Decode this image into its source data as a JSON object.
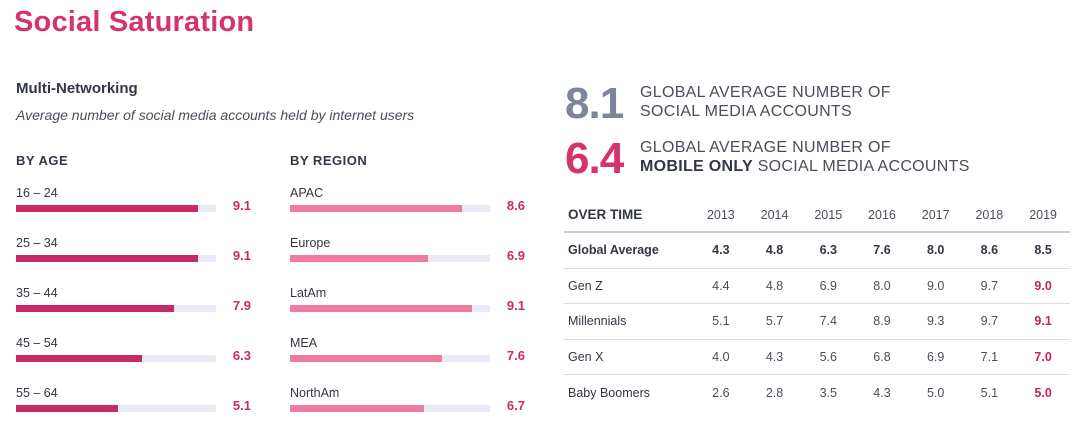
{
  "title": "Social Saturation",
  "subtitle": "Multi-Networking",
  "description": "Average number of social media accounts held by internet users",
  "colors": {
    "age": "#c72a64",
    "region": "#f07aa0",
    "track": "#e8eaf5",
    "accent": "#d6336c",
    "slate": "#7e849c"
  },
  "chart_data": [
    {
      "type": "bar",
      "title": "BY AGE",
      "categories": [
        "16 – 24",
        "25 – 34",
        "35 – 44",
        "45 – 54",
        "55 – 64"
      ],
      "values": [
        9.1,
        9.1,
        7.9,
        6.3,
        5.1
      ],
      "value_labels": [
        "9.1",
        "9.1",
        "7.9",
        "6.3",
        "5.1"
      ],
      "xlim": [
        0,
        10
      ]
    },
    {
      "type": "bar",
      "title": "BY REGION",
      "categories": [
        "APAC",
        "Europe",
        "LatAm",
        "MEA",
        "NorthAm"
      ],
      "values": [
        8.6,
        6.9,
        9.1,
        7.6,
        6.7
      ],
      "value_labels": [
        "8.6",
        "6.9",
        "9.1",
        "7.6",
        "6.7"
      ],
      "xlim": [
        0,
        10
      ]
    },
    {
      "type": "table",
      "title": "OVER TIME",
      "columns": [
        "2013",
        "2014",
        "2015",
        "2016",
        "2017",
        "2018",
        "2019"
      ],
      "rows": [
        {
          "label": "Global Average",
          "values": [
            "4.3",
            "4.8",
            "6.3",
            "7.6",
            "8.0",
            "8.6",
            "8.5"
          ]
        },
        {
          "label": "Gen Z",
          "values": [
            "4.4",
            "4.8",
            "6.9",
            "8.0",
            "9.0",
            "9.7",
            "9.0"
          ]
        },
        {
          "label": "Millennials",
          "values": [
            "5.1",
            "5.7",
            "7.4",
            "8.9",
            "9.3",
            "9.7",
            "9.1"
          ]
        },
        {
          "label": "Gen X",
          "values": [
            "4.0",
            "4.3",
            "5.6",
            "6.8",
            "6.9",
            "7.1",
            "7.0"
          ]
        },
        {
          "label": "Baby Boomers",
          "values": [
            "2.6",
            "2.8",
            "3.5",
            "4.3",
            "5.0",
            "5.1",
            "5.0"
          ]
        }
      ]
    }
  ],
  "stats": [
    {
      "value": "8.1",
      "line1": "GLOBAL AVERAGE NUMBER OF",
      "line2_bold": "",
      "line2": "SOCIAL MEDIA ACCOUNTS"
    },
    {
      "value": "6.4",
      "line1": "GLOBAL AVERAGE NUMBER OF",
      "line2_bold": "MOBILE ONLY",
      "line2": " SOCIAL MEDIA ACCOUNTS"
    }
  ]
}
